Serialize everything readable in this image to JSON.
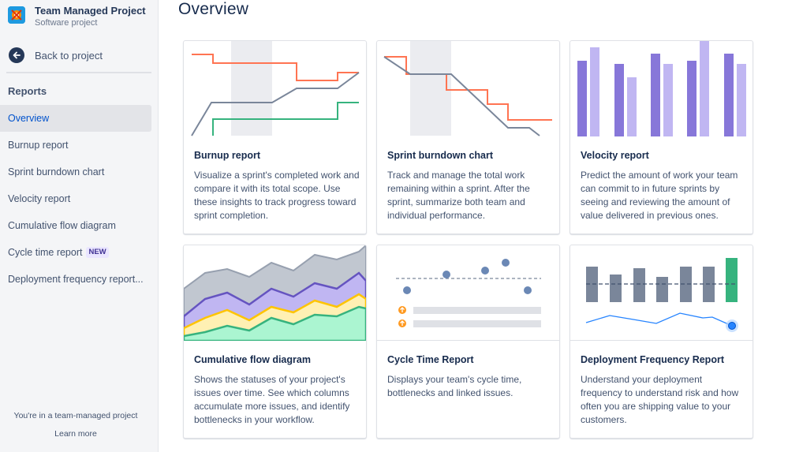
{
  "sidebar": {
    "project_name": "Team Managed Project",
    "project_type": "Software project",
    "back_label": "Back to project",
    "section_heading": "Reports",
    "items": [
      {
        "label": "Overview",
        "active": true
      },
      {
        "label": "Burnup report"
      },
      {
        "label": "Sprint burndown chart"
      },
      {
        "label": "Velocity report"
      },
      {
        "label": "Cumulative flow diagram"
      },
      {
        "label": "Cycle time report",
        "badge": "NEW"
      },
      {
        "label": "Deployment frequency report..."
      }
    ],
    "footer_note": "You're in a team-managed project",
    "learn_more": "Learn more"
  },
  "main": {
    "title": "Overview",
    "cards": [
      {
        "title": "Burnup report",
        "description": "Visualize a sprint's completed work and compare it with its total scope. Use these insights to track progress toward sprint completion.",
        "icon": "burnup-chart-illustration"
      },
      {
        "title": "Sprint burndown chart",
        "description": "Track and manage the total work remaining within a sprint. After the sprint, summarize both team and individual performance.",
        "icon": "burndown-chart-illustration"
      },
      {
        "title": "Velocity report",
        "description": "Predict the amount of work your team can commit to in future sprints by seeing and reviewing the amount of value delivered in previous ones.",
        "icon": "velocity-chart-illustration"
      },
      {
        "title": "Cumulative flow diagram",
        "description": "Shows the statuses of your project's issues over time. See which columns accumulate more issues, and identify bottlenecks in your workflow.",
        "icon": "cumulative-flow-illustration"
      },
      {
        "title": "Cycle Time Report",
        "description": "Displays your team's cycle time, bottlenecks and linked issues.",
        "icon": "cycle-time-illustration"
      },
      {
        "title": "Deployment Frequency Report",
        "description": "Understand your deployment frequency to understand risk and how often you are shipping value to your customers.",
        "icon": "deployment-frequency-illustration"
      }
    ]
  },
  "colors": {
    "accent": "#0052CC",
    "orange": "#FF7452",
    "grey_line": "#7A869A",
    "green": "#36B37E",
    "purple_dark": "#8777D9",
    "purple_light": "#C0B6F2",
    "yellow": "#FFE380"
  }
}
